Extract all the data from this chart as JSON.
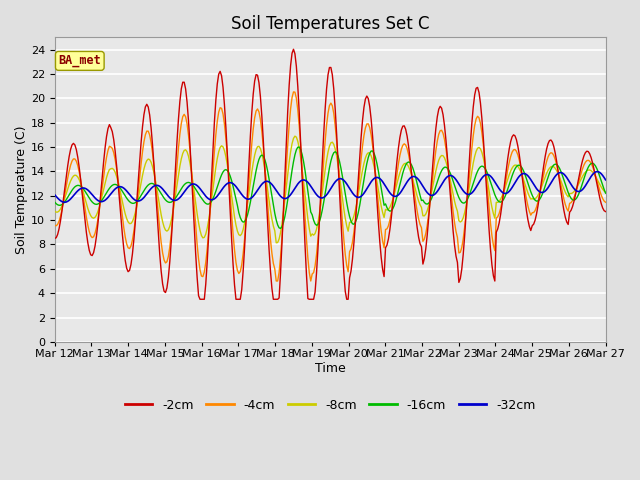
{
  "title": "Soil Temperatures Set C",
  "xlabel": "Time",
  "ylabel": "Soil Temperature (C)",
  "ylim": [
    0,
    25
  ],
  "yticks": [
    0,
    2,
    4,
    6,
    8,
    10,
    12,
    14,
    16,
    18,
    20,
    22,
    24
  ],
  "background_color": "#e0e0e0",
  "plot_bg": "#e8e8e8",
  "grid_color": "white",
  "legend_entries": [
    "-2cm",
    "-4cm",
    "-8cm",
    "-16cm",
    "-32cm"
  ],
  "line_colors": [
    "#cc0000",
    "#ff8800",
    "#cccc00",
    "#00bb00",
    "#0000cc"
  ],
  "annotation_text": "BA_met",
  "annotation_color": "#8b0000",
  "annotation_bg": "#ffff99",
  "x_start_day": 12,
  "x_end_day": 27,
  "xtick_days": [
    12,
    13,
    14,
    15,
    16,
    17,
    18,
    19,
    20,
    21,
    22,
    23,
    24,
    25,
    26,
    27
  ],
  "title_fontsize": 12,
  "axis_label_fontsize": 9,
  "tick_fontsize": 8
}
